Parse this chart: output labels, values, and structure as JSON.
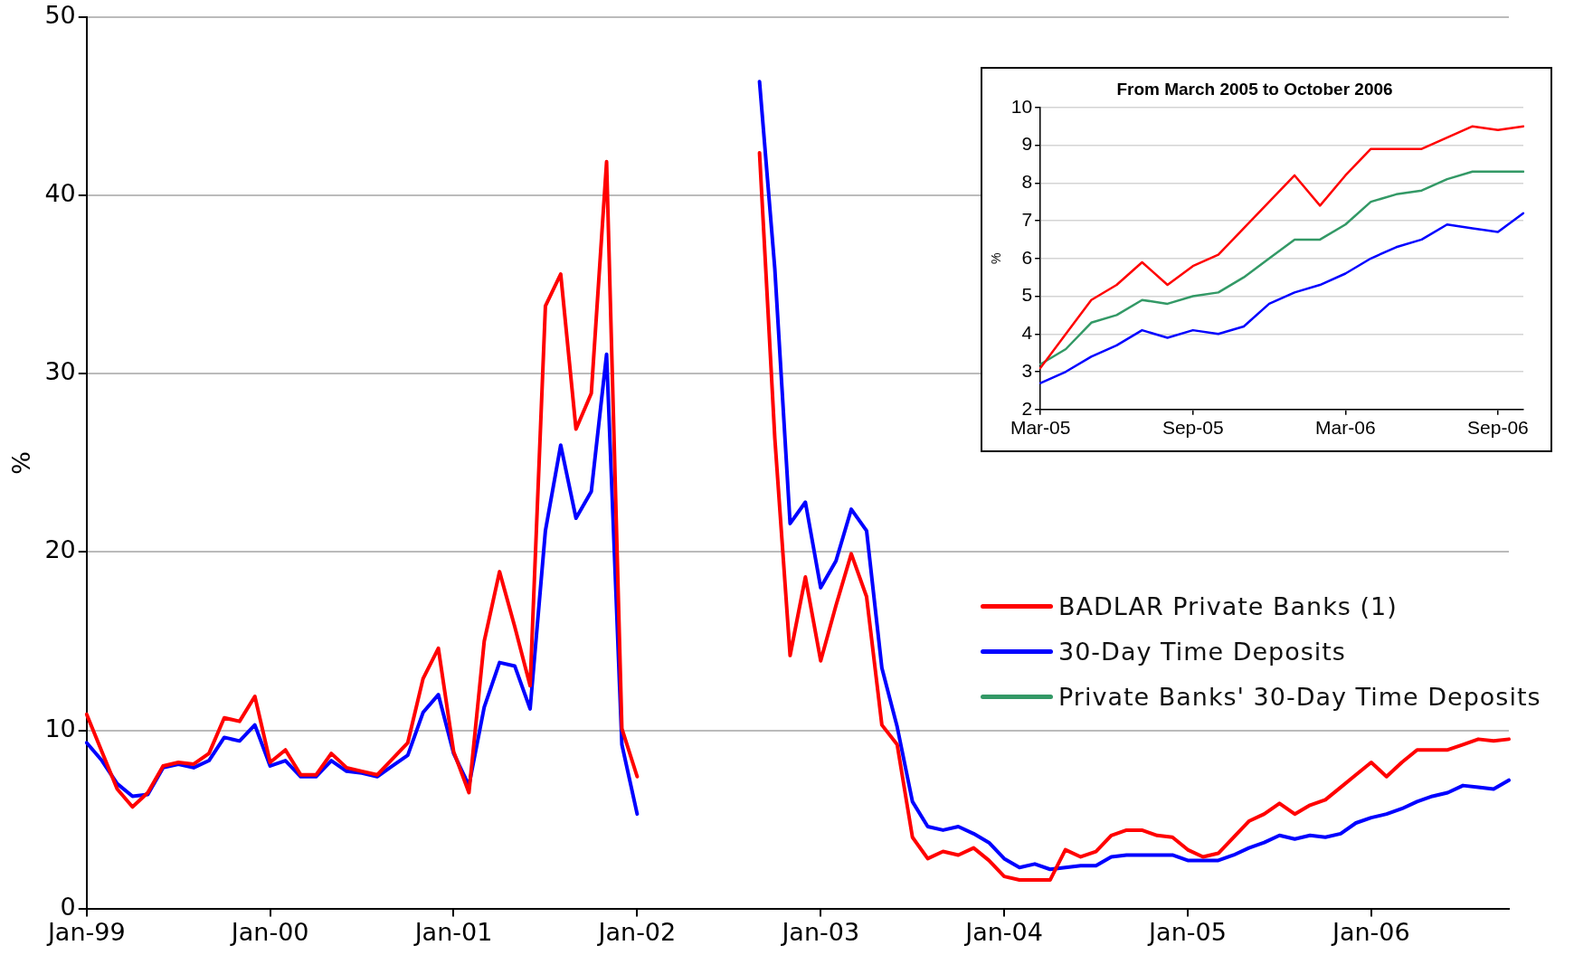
{
  "chart_data": [
    {
      "type": "line",
      "ylabel": "%",
      "legend": "right",
      "grid": "y",
      "ylim": [
        0,
        50
      ],
      "yticks": [
        0,
        10,
        20,
        30,
        40,
        50
      ],
      "categories": [
        "Jan-99",
        null,
        null,
        null,
        null,
        null,
        null,
        null,
        null,
        null,
        null,
        null,
        "Jan-00",
        null,
        null,
        null,
        null,
        null,
        null,
        null,
        null,
        null,
        null,
        null,
        "Jan-01",
        null,
        null,
        null,
        null,
        null,
        null,
        null,
        null,
        null,
        null,
        null,
        "Jan-02",
        null,
        null,
        null,
        null,
        null,
        null,
        null,
        null,
        null,
        null,
        null,
        "Jan-03",
        null,
        null,
        null,
        null,
        null,
        null,
        null,
        null,
        null,
        null,
        null,
        "Jan-04",
        null,
        null,
        null,
        null,
        null,
        null,
        null,
        null,
        null,
        null,
        null,
        "Jan-05",
        null,
        null,
        null,
        null,
        null,
        null,
        null,
        null,
        null,
        null,
        null,
        "Jan-06",
        null,
        null,
        null,
        null,
        null,
        null,
        null,
        null,
        null
      ],
      "series": [
        {
          "name": "BADLAR Private Banks (1)",
          "color": "#ff0000",
          "values": [
            10.9,
            8.8,
            6.7,
            5.7,
            6.5,
            8.0,
            8.2,
            8.1,
            8.7,
            10.7,
            10.5,
            11.9,
            8.2,
            8.9,
            7.5,
            7.5,
            8.7,
            7.9,
            7.7,
            7.5,
            8.4,
            9.3,
            12.9,
            14.6,
            8.8,
            6.5,
            15.0,
            18.9,
            15.8,
            12.5,
            33.8,
            35.6,
            26.9,
            28.9,
            41.9,
            10.1,
            7.4,
            null,
            null,
            null,
            null,
            null,
            null,
            null,
            42.4,
            26.4,
            14.2,
            18.6,
            13.9,
            17.0,
            19.9,
            17.5,
            10.3,
            9.2,
            4.0,
            2.8,
            3.2,
            3.0,
            3.4,
            2.7,
            1.8,
            1.6,
            1.6,
            1.6,
            3.3,
            2.9,
            3.2,
            4.1,
            4.4,
            4.4,
            4.1,
            4.0,
            3.3,
            2.9,
            3.1,
            4.0,
            4.9,
            5.3,
            5.9,
            5.3,
            5.8,
            6.1,
            6.8,
            7.5,
            8.2,
            7.4,
            8.2,
            8.9,
            8.9,
            8.9,
            9.2,
            9.5,
            9.4,
            9.5
          ]
        },
        {
          "name": "30-Day Time Deposits",
          "color": "#0000ff",
          "values": [
            9.3,
            8.3,
            7.0,
            6.3,
            6.4,
            7.9,
            8.1,
            7.9,
            8.3,
            9.6,
            9.4,
            10.3,
            8.0,
            8.3,
            7.4,
            7.4,
            8.3,
            7.7,
            7.6,
            7.4,
            8.0,
            8.6,
            11.0,
            12.0,
            8.7,
            6.9,
            11.3,
            13.8,
            13.6,
            11.2,
            21.2,
            26.0,
            21.9,
            23.4,
            31.1,
            9.2,
            5.3,
            null,
            null,
            null,
            null,
            null,
            null,
            null,
            46.4,
            35.9,
            21.6,
            22.8,
            18.0,
            19.5,
            22.4,
            21.2,
            13.5,
            10.2,
            6.0,
            4.6,
            4.4,
            4.6,
            4.2,
            3.7,
            2.8,
            2.3,
            2.5,
            2.2,
            2.3,
            2.4,
            2.4,
            2.9,
            3.0,
            3.0,
            3.0,
            3.0,
            2.7,
            2.7,
            2.7,
            3.0,
            3.4,
            3.7,
            4.1,
            3.9,
            4.1,
            4.0,
            4.2,
            4.8,
            5.1,
            5.3,
            5.6,
            6.0,
            6.3,
            6.5,
            6.9,
            6.8,
            6.7,
            7.2
          ]
        },
        {
          "name": "Private Banks' 30-Day Time Deposits",
          "color": "#339966",
          "values": [
            null,
            null,
            null,
            null,
            null,
            null,
            null,
            null,
            null,
            null,
            null,
            null,
            null,
            null,
            null,
            null,
            null,
            null,
            null,
            null,
            null,
            null,
            null,
            null,
            null,
            null,
            null,
            null,
            null,
            null,
            null,
            null,
            null,
            null,
            null,
            null,
            null,
            null,
            null,
            null,
            null,
            null,
            null,
            null,
            null,
            null,
            null,
            null,
            null,
            null,
            null,
            null,
            null,
            null,
            null,
            null,
            null,
            null,
            null,
            null,
            null,
            null,
            null,
            null,
            null,
            null,
            null,
            null,
            null,
            null,
            null,
            null,
            null,
            null,
            null,
            null,
            null,
            null,
            null,
            null,
            null,
            null,
            null,
            null,
            null,
            null,
            null,
            null,
            null,
            null,
            null,
            null,
            null,
            null
          ]
        }
      ]
    },
    {
      "type": "line",
      "title": "From March 2005 to October 2006",
      "ylabel": "%",
      "grid": "y",
      "ylim": [
        2,
        10
      ],
      "yticks": [
        2,
        3,
        4,
        5,
        6,
        7,
        8,
        9,
        10
      ],
      "categories": [
        "Mar-05",
        null,
        null,
        null,
        null,
        null,
        "Sep-05",
        null,
        null,
        null,
        null,
        null,
        "Mar-06",
        null,
        null,
        null,
        null,
        null,
        "Sep-06",
        null
      ],
      "series": [
        {
          "color": "#ff0000",
          "values": [
            3.1,
            4.0,
            4.9,
            5.3,
            5.9,
            5.3,
            5.8,
            6.1,
            6.8,
            7.5,
            8.2,
            7.4,
            8.2,
            8.9,
            8.9,
            8.9,
            9.2,
            9.5,
            9.4,
            9.5
          ]
        },
        {
          "color": "#339966",
          "values": [
            3.2,
            3.6,
            4.3,
            4.5,
            4.9,
            4.8,
            5.0,
            5.1,
            5.5,
            6.0,
            6.5,
            6.5,
            6.9,
            7.5,
            7.7,
            7.8,
            8.1,
            8.3,
            8.3,
            8.3
          ]
        },
        {
          "color": "#0000ff",
          "values": [
            2.7,
            3.0,
            3.4,
            3.7,
            4.1,
            3.9,
            4.1,
            4.0,
            4.2,
            4.8,
            5.1,
            5.3,
            5.6,
            6.0,
            6.3,
            6.5,
            6.9,
            6.8,
            6.7,
            7.2
          ]
        }
      ]
    }
  ]
}
